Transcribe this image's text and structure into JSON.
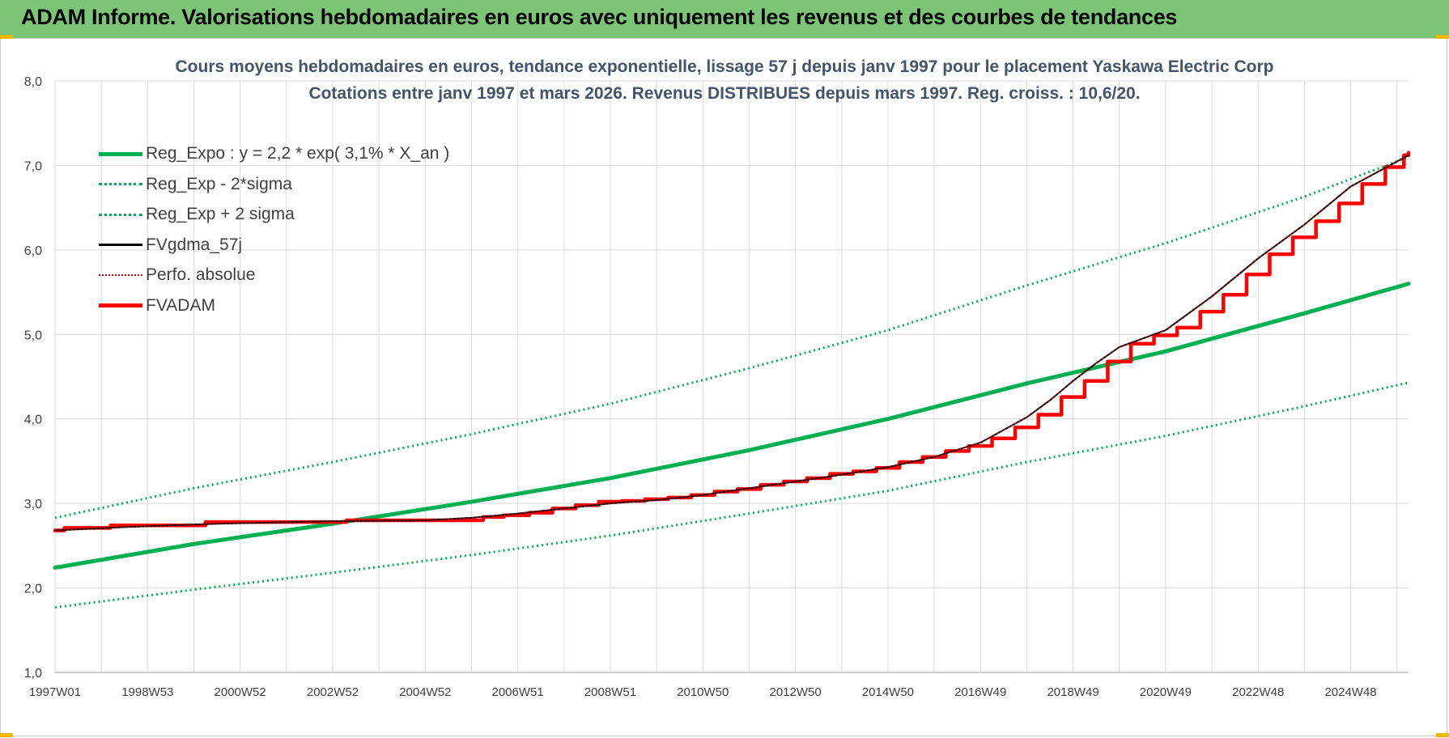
{
  "banner": {
    "title": "ADAM Informe. Valorisations hebdomadaires en euros avec uniquement les revenus et des courbes de tendances",
    "background": "#7cc576"
  },
  "chart_data": {
    "type": "line",
    "title_line1": "Cours moyens hebdomadaires en euros, tendance exponentielle, lissage 57 j depuis janv 1997  pour le placement Yaskawa Electric Corp",
    "title_line2": "Cotations entre janv 1997 et mars 2026. Revenus DISTRIBUES depuis mars 1997. Reg. croiss. : 10,6/20.",
    "ylim": [
      1,
      8
    ],
    "y_ticks": [
      "1,0",
      "2,0",
      "3,0",
      "4,0",
      "5,0",
      "6,0",
      "7,0",
      "8,0"
    ],
    "xlim": [
      1997.0,
      2026.25
    ],
    "x_ticks": [
      "1997W01",
      "1998W53",
      "2000W52",
      "2002W52",
      "2004W52",
      "2006W51",
      "2008W51",
      "2010W50",
      "2012W50",
      "2014W50",
      "2016W49",
      "2018W49",
      "2020W49",
      "2022W48",
      "2024W48"
    ],
    "legend_position": "top-left",
    "grid": true,
    "series": [
      {
        "name": "Reg_Expo : y = 2,2 * exp( 3,1% *  X_an )",
        "color": "#00b050",
        "style": "solid-thick",
        "x": [
          1997.0,
          2000.0,
          2003.0,
          2006.0,
          2009.0,
          2012.0,
          2015.0,
          2018.0,
          2021.0,
          2024.0,
          2026.25
        ],
        "y": [
          2.24,
          2.52,
          2.76,
          3.02,
          3.3,
          3.63,
          4.0,
          4.42,
          4.8,
          5.25,
          5.6
        ]
      },
      {
        "name": "Reg_Exp - 2*sigma",
        "color": "#00b050",
        "style": "dotted",
        "x": [
          1997.0,
          2000.0,
          2003.0,
          2006.0,
          2009.0,
          2012.0,
          2015.0,
          2018.0,
          2021.0,
          2024.0,
          2026.25
        ],
        "y": [
          1.77,
          1.98,
          2.18,
          2.39,
          2.62,
          2.88,
          3.15,
          3.49,
          3.8,
          4.15,
          4.43
        ]
      },
      {
        "name": "Reg_Exp + 2 sigma",
        "color": "#00b050",
        "style": "dotted",
        "x": [
          1997.0,
          2000.0,
          2003.0,
          2006.0,
          2009.0,
          2012.0,
          2015.0,
          2018.0,
          2021.0,
          2024.0,
          2026.25
        ],
        "y": [
          2.83,
          3.18,
          3.49,
          3.82,
          4.18,
          4.6,
          5.05,
          5.58,
          6.08,
          6.63,
          7.1
        ]
      },
      {
        "name": "FVgdma_57j",
        "color": "#000000",
        "style": "solid-thin",
        "x": [
          1997.0,
          1998.5,
          2000.5,
          2003.0,
          2005.0,
          2006.0,
          2007.0,
          2008.0,
          2009.0,
          2010.0,
          2011.0,
          2012.0,
          2013.0,
          2014.0,
          2015.0,
          2016.0,
          2017.0,
          2018.0,
          2018.5,
          2019.0,
          2019.5,
          2020.0,
          2021.0,
          2022.0,
          2023.0,
          2024.0,
          2025.0,
          2026.25
        ],
        "y": [
          2.68,
          2.72,
          2.76,
          2.79,
          2.8,
          2.83,
          2.88,
          2.94,
          3.0,
          3.04,
          3.1,
          3.18,
          3.26,
          3.34,
          3.43,
          3.55,
          3.72,
          4.02,
          4.22,
          4.45,
          4.66,
          4.85,
          5.05,
          5.45,
          5.9,
          6.3,
          6.75,
          7.12
        ]
      },
      {
        "name": "Perfo. absolue",
        "color": "#c00000",
        "style": "dotted-thin",
        "x": [
          1997.0,
          1998.5,
          2000.5,
          2003.0,
          2005.0,
          2006.0,
          2007.0,
          2008.0,
          2009.0,
          2010.0,
          2011.0,
          2012.0,
          2013.0,
          2014.0,
          2015.0,
          2016.0,
          2017.0,
          2018.0,
          2018.5,
          2019.0,
          2019.5,
          2020.0,
          2021.0,
          2022.0,
          2023.0,
          2024.0,
          2025.0,
          2026.25
        ],
        "y": [
          2.68,
          2.72,
          2.76,
          2.79,
          2.8,
          2.83,
          2.88,
          2.94,
          3.0,
          3.04,
          3.1,
          3.18,
          3.26,
          3.34,
          3.43,
          3.55,
          3.72,
          4.02,
          4.22,
          4.45,
          4.66,
          4.85,
          5.05,
          5.45,
          5.9,
          6.3,
          6.75,
          7.12
        ]
      },
      {
        "name": "FVADAM",
        "color": "#ff0000",
        "style": "step-thick",
        "x": [
          1997.0,
          1997.2,
          1998.2,
          2000.25,
          2003.3,
          2006.25,
          2006.7,
          2007.25,
          2007.75,
          2008.25,
          2008.75,
          2009.25,
          2009.75,
          2010.25,
          2010.75,
          2011.25,
          2011.75,
          2012.25,
          2012.75,
          2013.25,
          2013.75,
          2014.25,
          2014.75,
          2015.25,
          2015.75,
          2016.25,
          2016.75,
          2017.25,
          2017.75,
          2018.25,
          2018.75,
          2019.25,
          2019.75,
          2020.25,
          2020.75,
          2021.25,
          2021.75,
          2022.25,
          2022.75,
          2023.25,
          2023.75,
          2024.25,
          2024.75,
          2025.25,
          2025.75,
          2026.15,
          2026.25
        ],
        "y": [
          2.68,
          2.71,
          2.74,
          2.78,
          2.8,
          2.84,
          2.86,
          2.89,
          2.94,
          2.98,
          3.02,
          3.03,
          3.05,
          3.07,
          3.1,
          3.14,
          3.17,
          3.22,
          3.26,
          3.3,
          3.35,
          3.38,
          3.42,
          3.49,
          3.55,
          3.62,
          3.68,
          3.77,
          3.9,
          4.05,
          4.26,
          4.45,
          4.68,
          4.89,
          4.99,
          5.08,
          5.27,
          5.47,
          5.71,
          5.95,
          6.15,
          6.34,
          6.55,
          6.78,
          6.98,
          7.12,
          7.15
        ]
      }
    ]
  }
}
